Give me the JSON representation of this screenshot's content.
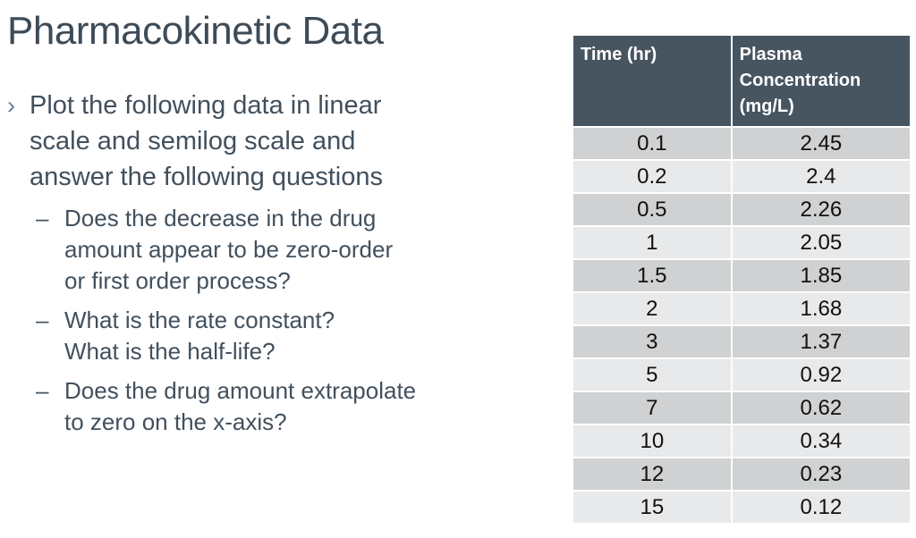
{
  "slide": {
    "title": "Pharmacokinetic Data"
  },
  "bullets": {
    "marker": "›",
    "main": "Plot the following data in linear\nscale and semilog scale and\nanswer the following questions",
    "sub_marker": "–",
    "sub": [
      "Does the decrease in the drug\namount appear to be zero-order\nor first order process?",
      "What is the rate constant?\nWhat is the half-life?",
      "Does the drug amount extrapolate\nto zero on the x-axis?"
    ]
  },
  "table": {
    "headers": [
      "Time (hr)",
      "Plasma Concentration (mg/L)"
    ],
    "rows": [
      [
        "0.1",
        "2.45"
      ],
      [
        "0.2",
        "2.4"
      ],
      [
        "0.5",
        "2.26"
      ],
      [
        "1",
        "2.05"
      ],
      [
        "1.5",
        "1.85"
      ],
      [
        "2",
        "1.68"
      ],
      [
        "3",
        "1.37"
      ],
      [
        "5",
        "0.92"
      ],
      [
        "7",
        "0.62"
      ],
      [
        "10",
        "0.34"
      ],
      [
        "12",
        "0.23"
      ],
      [
        "15",
        "0.12"
      ]
    ]
  },
  "colors": {
    "table_header_bg": "#475561",
    "row_dark": "#cfd1d3",
    "row_light": "#e8e9ea",
    "title_text": "#3d4b57",
    "body_text": "#42505d",
    "bullet_accent": "#5d7d9e",
    "header_text": "#ffffff",
    "cell_text": "#111111"
  }
}
